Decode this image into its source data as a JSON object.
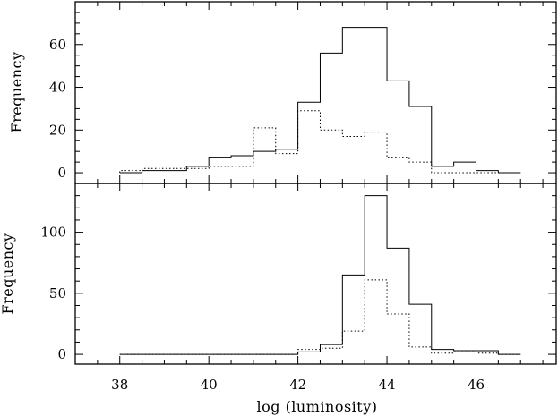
{
  "chart_data": [
    {
      "type": "step",
      "xlabel": "",
      "ylabel": "Frequency",
      "xlim": [
        37,
        47.8
      ],
      "ylim": [
        -5,
        80
      ],
      "yticks": [
        0,
        20,
        40,
        60
      ],
      "yticks_minor_step": 5,
      "bin_edges": [
        38,
        38.5,
        39,
        39.5,
        40,
        40.5,
        41,
        41.5,
        42,
        42.5,
        43,
        43.5,
        44,
        44.5,
        45,
        45.5,
        46,
        46.5,
        47
      ],
      "series": [
        {
          "line_style": "solid",
          "values": [
            0,
            1,
            1,
            3,
            7,
            8,
            10,
            11,
            33,
            56,
            68,
            68,
            43,
            31,
            3,
            5,
            1,
            0
          ]
        },
        {
          "line_style": "dotted",
          "values": [
            1,
            2,
            2,
            2,
            3,
            3,
            21,
            9,
            29,
            20,
            17,
            19,
            7,
            5,
            0,
            0,
            0,
            0
          ]
        }
      ]
    },
    {
      "type": "step",
      "xlabel": "log (luminosity)",
      "ylabel": "Frequency",
      "xlim": [
        37,
        47.8
      ],
      "ylim": [
        -8,
        140
      ],
      "xticks": [
        38,
        40,
        42,
        44,
        46
      ],
      "xticks_minor_step": 0.5,
      "yticks": [
        0,
        50,
        100
      ],
      "yticks_minor_step": 10,
      "bin_edges": [
        38,
        38.5,
        39,
        39.5,
        40,
        40.5,
        41,
        41.5,
        42,
        42.5,
        43,
        43.5,
        44,
        44.5,
        45,
        45.5,
        46,
        46.5,
        47
      ],
      "series": [
        {
          "line_style": "solid",
          "values": [
            0,
            0,
            0,
            0,
            0,
            0,
            0,
            0,
            2,
            8,
            65,
            130,
            87,
            41,
            4,
            3,
            3,
            0
          ]
        },
        {
          "line_style": "dotted",
          "values": [
            0,
            0,
            0,
            0,
            0,
            0,
            0,
            0,
            4,
            5,
            19,
            61,
            33,
            6,
            1,
            2,
            1,
            0
          ]
        }
      ]
    }
  ]
}
